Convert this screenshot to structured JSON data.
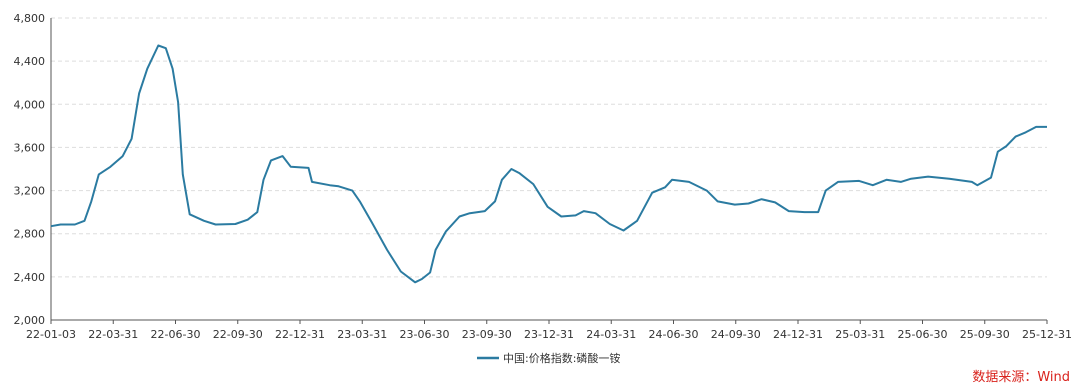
{
  "chart_data": {
    "type": "line",
    "title": "",
    "xlabel": "",
    "ylabel": "",
    "ylim": [
      2000,
      4800
    ],
    "y_ticks": [
      "2,000",
      "2,400",
      "2,800",
      "3,200",
      "3,600",
      "4,000",
      "4,400",
      "4,800"
    ],
    "y_tick_values": [
      2000,
      2400,
      2800,
      3200,
      3600,
      4000,
      4400,
      4800
    ],
    "x_ticks": [
      "22-01-03",
      "22-03-31",
      "22-06-30",
      "22-09-30",
      "22-12-31",
      "23-03-31",
      "23-06-30",
      "23-09-30",
      "23-12-31",
      "24-03-31",
      "24-06-30",
      "24-09-30",
      "24-12-31",
      "25-03-31",
      "25-06-30",
      "25-09-30",
      "25-12-31"
    ],
    "grid": true,
    "legend_position": "bottom-center",
    "series": [
      {
        "name": "中国:价格指数:磷酸一铵",
        "color": "#2b7ba1",
        "points": [
          [
            "22-01-03",
            2870
          ],
          [
            "22-01-17",
            2885
          ],
          [
            "22-02-07",
            2885
          ],
          [
            "22-02-21",
            2920
          ],
          [
            "22-03-03",
            3100
          ],
          [
            "22-03-14",
            3350
          ],
          [
            "22-03-31",
            3420
          ],
          [
            "22-04-18",
            3520
          ],
          [
            "22-05-01",
            3680
          ],
          [
            "22-05-12",
            4100
          ],
          [
            "22-05-24",
            4330
          ],
          [
            "22-06-09",
            4545
          ],
          [
            "22-06-20",
            4520
          ],
          [
            "22-06-30",
            4330
          ],
          [
            "22-07-08",
            4020
          ],
          [
            "22-07-15",
            3350
          ],
          [
            "22-07-25",
            2980
          ],
          [
            "22-08-15",
            2920
          ],
          [
            "22-09-01",
            2885
          ],
          [
            "22-09-30",
            2890
          ],
          [
            "22-10-18",
            2930
          ],
          [
            "22-11-01",
            3000
          ],
          [
            "22-11-10",
            3300
          ],
          [
            "22-11-21",
            3480
          ],
          [
            "22-12-08",
            3520
          ],
          [
            "22-12-20",
            3420
          ],
          [
            "23-01-15",
            3410
          ],
          [
            "23-01-20",
            3280
          ],
          [
            "23-02-15",
            3250
          ],
          [
            "23-02-28",
            3240
          ],
          [
            "23-03-20",
            3200
          ],
          [
            "23-03-31",
            3100
          ],
          [
            "23-04-18",
            2900
          ],
          [
            "23-05-10",
            2650
          ],
          [
            "23-05-30",
            2450
          ],
          [
            "23-06-20",
            2350
          ],
          [
            "23-06-30",
            2380
          ],
          [
            "23-07-12",
            2440
          ],
          [
            "23-07-20",
            2650
          ],
          [
            "23-08-04",
            2820
          ],
          [
            "23-08-24",
            2960
          ],
          [
            "23-09-08",
            2990
          ],
          [
            "23-09-30",
            3010
          ],
          [
            "23-10-15",
            3100
          ],
          [
            "23-10-25",
            3300
          ],
          [
            "23-11-08",
            3400
          ],
          [
            "23-11-20",
            3360
          ],
          [
            "23-12-10",
            3260
          ],
          [
            "23-12-31",
            3050
          ],
          [
            "24-01-20",
            2960
          ],
          [
            "24-02-10",
            2970
          ],
          [
            "24-02-22",
            3010
          ],
          [
            "24-03-10",
            2990
          ],
          [
            "24-03-31",
            2890
          ],
          [
            "24-04-20",
            2830
          ],
          [
            "24-05-10",
            2920
          ],
          [
            "24-06-01",
            3180
          ],
          [
            "24-06-20",
            3230
          ],
          [
            "24-06-30",
            3300
          ],
          [
            "24-07-25",
            3280
          ],
          [
            "24-08-20",
            3200
          ],
          [
            "24-09-05",
            3100
          ],
          [
            "24-09-30",
            3070
          ],
          [
            "24-10-20",
            3080
          ],
          [
            "24-11-08",
            3120
          ],
          [
            "24-11-28",
            3090
          ],
          [
            "24-12-18",
            3010
          ],
          [
            "25-01-10",
            3000
          ],
          [
            "25-01-30",
            3000
          ],
          [
            "25-02-10",
            3200
          ],
          [
            "25-02-28",
            3280
          ],
          [
            "25-03-31",
            3290
          ],
          [
            "25-04-20",
            3250
          ],
          [
            "25-05-10",
            3300
          ],
          [
            "25-05-31",
            3280
          ],
          [
            "25-06-15",
            3310
          ],
          [
            "25-07-10",
            3330
          ],
          [
            "25-08-10",
            3310
          ],
          [
            "25-09-12",
            3280
          ],
          [
            "25-09-20",
            3250
          ],
          [
            "25-10-10",
            3320
          ],
          [
            "25-10-20",
            3560
          ],
          [
            "25-11-01",
            3610
          ],
          [
            "25-11-15",
            3700
          ],
          [
            "25-11-30",
            3740
          ],
          [
            "25-12-15",
            3790
          ],
          [
            "25-12-31",
            3790
          ]
        ]
      }
    ]
  },
  "source": "数据来源：Wind"
}
